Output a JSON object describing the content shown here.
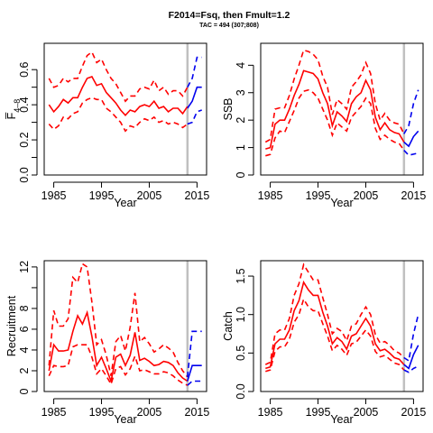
{
  "title": "F2014=Fsq, then Fmult=1.2",
  "subtitle": "TAC = 494 (307;808)",
  "chart_data": [
    {
      "type": "line",
      "name": "F",
      "ylabel": "F̅",
      "ylabel_sub": "4–8",
      "xlabel": "Year",
      "xlim": [
        1983,
        2017
      ],
      "ylim": [
        0,
        0.75
      ],
      "xticks": [
        1985,
        1995,
        2005,
        2015
      ],
      "yticks": [
        0.0,
        0.2,
        0.4,
        0.6
      ],
      "yticks_minor": [
        0.1,
        0.3,
        0.5
      ],
      "vline": 2013,
      "hist": {
        "x": [
          1984,
          1985,
          1986,
          1987,
          1988,
          1989,
          1990,
          1991,
          1992,
          1993,
          1994,
          1995,
          1996,
          1997,
          1998,
          1999,
          2000,
          2001,
          2002,
          2003,
          2004,
          2005,
          2006,
          2007,
          2008,
          2009,
          2010,
          2011,
          2012,
          2013
        ],
        "median": [
          0.4,
          0.36,
          0.39,
          0.43,
          0.41,
          0.44,
          0.44,
          0.5,
          0.55,
          0.56,
          0.51,
          0.52,
          0.47,
          0.44,
          0.41,
          0.37,
          0.34,
          0.37,
          0.36,
          0.39,
          0.4,
          0.39,
          0.42,
          0.38,
          0.39,
          0.36,
          0.38,
          0.38,
          0.35,
          0.39
        ],
        "lower": [
          0.29,
          0.26,
          0.28,
          0.33,
          0.32,
          0.35,
          0.36,
          0.41,
          0.43,
          0.44,
          0.43,
          0.43,
          0.38,
          0.36,
          0.33,
          0.3,
          0.25,
          0.28,
          0.27,
          0.3,
          0.32,
          0.31,
          0.33,
          0.3,
          0.31,
          0.29,
          0.3,
          0.29,
          0.27,
          0.29
        ],
        "upper": [
          0.55,
          0.5,
          0.51,
          0.55,
          0.53,
          0.55,
          0.55,
          0.62,
          0.68,
          0.7,
          0.64,
          0.66,
          0.6,
          0.55,
          0.52,
          0.47,
          0.42,
          0.45,
          0.45,
          0.49,
          0.5,
          0.49,
          0.54,
          0.48,
          0.5,
          0.46,
          0.48,
          0.48,
          0.45,
          0.5
        ]
      },
      "proj": {
        "x": [
          2013,
          2014,
          2015,
          2016
        ],
        "median": [
          0.38,
          0.42,
          0.5,
          0.5
        ],
        "lower": [
          0.29,
          0.3,
          0.36,
          0.37
        ],
        "upper": [
          0.5,
          0.55,
          0.67,
          0.67
        ]
      }
    },
    {
      "type": "line",
      "name": "SSB",
      "ylabel": "SSB",
      "xlabel": "Year",
      "xlim": [
        1983,
        2017
      ],
      "ylim": [
        0,
        4.8
      ],
      "xticks": [
        1985,
        1995,
        2005,
        2015
      ],
      "yticks": [
        0,
        1,
        2,
        3,
        4
      ],
      "yticks_minor": [],
      "vline": 2013,
      "hist": {
        "x": [
          1984,
          1985,
          1986,
          1987,
          1988,
          1989,
          1990,
          1991,
          1992,
          1993,
          1994,
          1995,
          1996,
          1997,
          1998,
          1999,
          2000,
          2001,
          2002,
          2003,
          2004,
          2005,
          2006,
          2007,
          2008,
          2009,
          2010,
          2011,
          2012,
          2013
        ],
        "median": [
          0.95,
          1.0,
          1.85,
          2.0,
          2.0,
          2.4,
          2.9,
          3.3,
          3.8,
          3.75,
          3.7,
          3.5,
          3.0,
          2.6,
          1.8,
          2.3,
          2.15,
          1.95,
          2.6,
          2.85,
          3.0,
          3.45,
          3.1,
          2.1,
          1.65,
          1.9,
          1.65,
          1.55,
          1.5,
          1.2
        ],
        "lower": [
          0.7,
          0.75,
          1.35,
          1.6,
          1.55,
          1.95,
          2.35,
          2.8,
          3.05,
          3.1,
          3.0,
          2.8,
          2.4,
          2.0,
          1.45,
          1.9,
          1.75,
          1.6,
          2.1,
          2.3,
          2.5,
          2.8,
          2.6,
          1.7,
          1.3,
          1.45,
          1.3,
          1.2,
          1.15,
          0.9
        ],
        "upper": [
          1.2,
          1.3,
          2.4,
          2.45,
          2.45,
          2.9,
          3.5,
          4.0,
          4.55,
          4.5,
          4.4,
          4.2,
          3.6,
          3.2,
          2.2,
          2.75,
          2.6,
          2.4,
          3.2,
          3.4,
          3.65,
          4.1,
          3.7,
          2.6,
          2.0,
          2.25,
          2.0,
          1.9,
          1.85,
          1.5
        ]
      },
      "proj": {
        "x": [
          2013,
          2014,
          2015,
          2016
        ],
        "median": [
          1.2,
          1.05,
          1.4,
          1.6
        ],
        "lower": [
          0.9,
          0.72,
          0.76,
          0.8
        ],
        "upper": [
          1.5,
          1.8,
          2.6,
          3.1
        ]
      }
    },
    {
      "type": "line",
      "name": "Recruitment",
      "ylabel": "Recruitment",
      "xlabel": "Year",
      "xlim": [
        1983,
        2017
      ],
      "ylim": [
        0,
        12.6
      ],
      "xticks": [
        1985,
        1995,
        2005,
        2015
      ],
      "yticks": [
        0,
        2,
        4,
        6,
        8,
        12
      ],
      "yticks_minor": [
        10
      ],
      "vline": 2013,
      "hist": {
        "x": [
          1984,
          1985,
          1986,
          1987,
          1988,
          1989,
          1990,
          1991,
          1992,
          1993,
          1994,
          1995,
          1996,
          1997,
          1998,
          1999,
          2000,
          2001,
          2002,
          2003,
          2004,
          2005,
          2006,
          2007,
          2008,
          2009,
          2010,
          2011,
          2012,
          2013
        ],
        "median": [
          2.0,
          4.5,
          3.9,
          3.9,
          4.0,
          5.8,
          7.3,
          6.5,
          7.6,
          5.3,
          2.5,
          3.3,
          2.2,
          1.0,
          3.3,
          3.6,
          2.5,
          3.5,
          5.7,
          3.0,
          3.2,
          2.9,
          2.5,
          2.6,
          2.9,
          2.8,
          2.5,
          1.8,
          1.3,
          1.0
        ],
        "lower": [
          1.5,
          2.5,
          2.4,
          2.4,
          2.5,
          4.3,
          4.5,
          4.5,
          4.5,
          3.3,
          1.7,
          2.2,
          1.5,
          0.7,
          2.2,
          2.4,
          1.6,
          2.2,
          3.4,
          2.0,
          2.1,
          1.9,
          1.7,
          1.7,
          1.9,
          1.8,
          1.5,
          1.1,
          0.8,
          0.6
        ],
        "upper": [
          2.5,
          7.8,
          6.3,
          6.3,
          7.0,
          11.0,
          10.5,
          12.3,
          12.0,
          8.6,
          4.5,
          5.0,
          3.5,
          1.5,
          4.8,
          5.4,
          3.9,
          6.2,
          9.5,
          4.8,
          5.2,
          4.6,
          3.8,
          4.1,
          4.5,
          4.2,
          3.8,
          2.8,
          2.0,
          1.4
        ]
      },
      "proj": {
        "x": [
          2013,
          2014,
          2015,
          2016
        ],
        "median": [
          1.0,
          2.5,
          2.5,
          2.5
        ],
        "lower": [
          0.6,
          1.0,
          1.0,
          1.0
        ],
        "upper": [
          1.4,
          5.8,
          5.8,
          5.8
        ]
      }
    },
    {
      "type": "line",
      "name": "Catch",
      "ylabel": "Catch",
      "xlabel": "Year",
      "xlim": [
        1983,
        2017
      ],
      "ylim": [
        0,
        1.7
      ],
      "xticks": [
        1985,
        1995,
        2005,
        2015
      ],
      "yticks": [
        0.0,
        0.5,
        1.0,
        1.5
      ],
      "yticks_minor": [],
      "vline": 2013,
      "hist": {
        "x": [
          1984,
          1985,
          1986,
          1987,
          1988,
          1989,
          1990,
          1991,
          1992,
          1993,
          1994,
          1995,
          1996,
          1997,
          1998,
          1999,
          2000,
          2001,
          2002,
          2003,
          2004,
          2005,
          2006,
          2007,
          2008,
          2009,
          2010,
          2011,
          2012,
          2013
        ],
        "median": [
          0.3,
          0.32,
          0.62,
          0.68,
          0.68,
          0.8,
          1.05,
          1.18,
          1.42,
          1.32,
          1.25,
          1.25,
          1.03,
          0.85,
          0.62,
          0.7,
          0.65,
          0.55,
          0.72,
          0.75,
          0.85,
          0.95,
          0.85,
          0.62,
          0.53,
          0.55,
          0.5,
          0.44,
          0.42,
          0.35
        ],
        "lower": [
          0.26,
          0.28,
          0.52,
          0.58,
          0.58,
          0.68,
          0.9,
          1.0,
          1.2,
          1.1,
          1.05,
          1.05,
          0.88,
          0.72,
          0.53,
          0.6,
          0.55,
          0.47,
          0.62,
          0.64,
          0.72,
          0.8,
          0.72,
          0.52,
          0.45,
          0.47,
          0.42,
          0.37,
          0.35,
          0.28
        ],
        "upper": [
          0.35,
          0.38,
          0.75,
          0.8,
          0.8,
          0.95,
          1.25,
          1.4,
          1.65,
          1.55,
          1.45,
          1.45,
          1.22,
          1.0,
          0.75,
          0.82,
          0.78,
          0.66,
          0.85,
          0.88,
          1.0,
          1.1,
          1.0,
          0.74,
          0.63,
          0.65,
          0.6,
          0.53,
          0.5,
          0.44
        ]
      },
      "proj": {
        "x": [
          2013,
          2014,
          2015,
          2016
        ],
        "median": [
          0.35,
          0.3,
          0.48,
          0.6
        ],
        "lower": [
          0.28,
          0.25,
          0.3,
          0.33
        ],
        "upper": [
          0.44,
          0.4,
          0.75,
          1.0
        ]
      }
    }
  ],
  "colors": {
    "hist": "#ff0000",
    "proj": "#0000ee",
    "vline": "#c0c0c0",
    "axis": "#000000"
  }
}
